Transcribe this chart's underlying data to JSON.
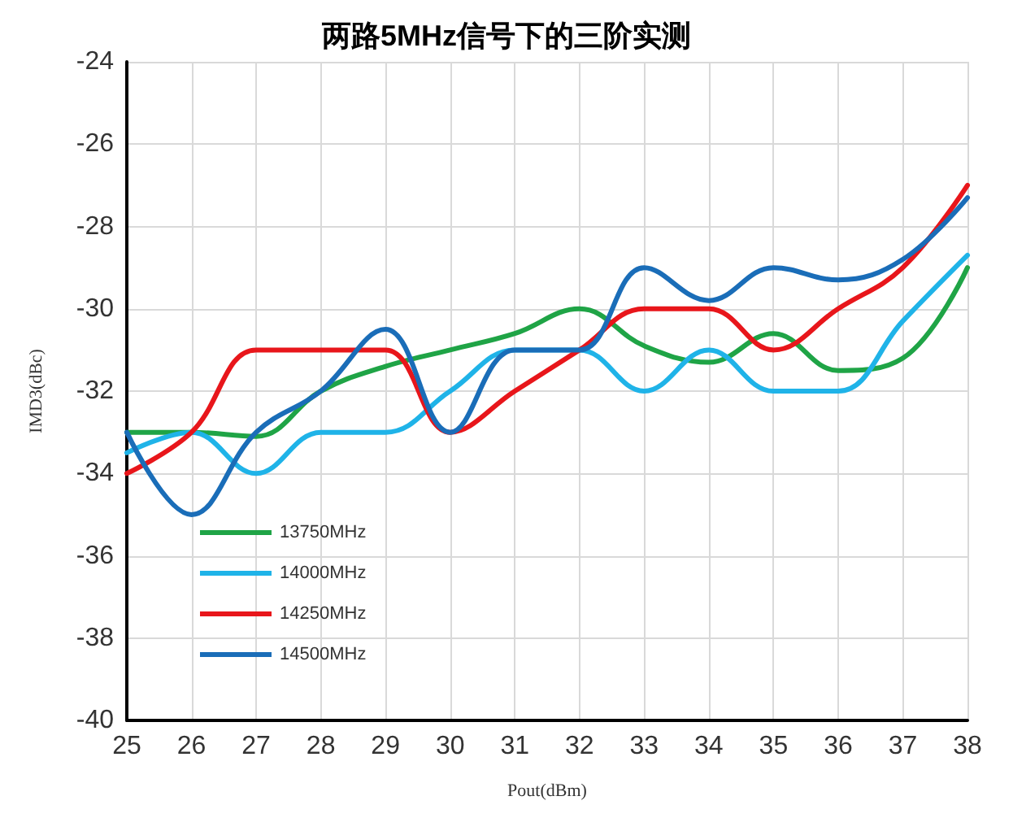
{
  "chart_data": {
    "type": "line",
    "title": "两路5MHz信号下的三阶实测",
    "xlabel": "Pout(dBm)",
    "ylabel": "IMD3(dBc)",
    "x": [
      25,
      26,
      27,
      28,
      29,
      30,
      31,
      32,
      33,
      34,
      35,
      36,
      37,
      38
    ],
    "series": [
      {
        "name": "13750MHz",
        "color": "#1fa446",
        "values": [
          -33,
          -33,
          -33.1,
          -32,
          -31.4,
          -31,
          -30.6,
          -30,
          -30.9,
          -31.3,
          -30.6,
          -31.5,
          -31.2,
          -29
        ]
      },
      {
        "name": "14000MHz",
        "color": "#1fb3e8",
        "values": [
          -33.5,
          -33,
          -34,
          -33,
          -33,
          -32,
          -31,
          -31,
          -32,
          -31,
          -32,
          -32,
          -30.3,
          -28.7
        ]
      },
      {
        "name": "14250MHz",
        "color": "#e8161b",
        "values": [
          -34,
          -33,
          -31,
          -31,
          -31,
          -33,
          -32,
          -31,
          -30,
          -30,
          -31,
          -30,
          -29,
          -27
        ]
      },
      {
        "name": "14500MHz",
        "color": "#1a6db8",
        "values": [
          -33,
          -35,
          -33,
          -32,
          -30.5,
          -33,
          -31,
          -31,
          -29,
          -29.8,
          -29,
          -29.3,
          -28.8,
          -27.3
        ]
      }
    ],
    "xlim": [
      25,
      38
    ],
    "xticks": [
      25,
      26,
      27,
      28,
      29,
      30,
      31,
      32,
      33,
      34,
      35,
      36,
      37,
      38
    ],
    "ylim": [
      -40,
      -24
    ],
    "yticks": [
      -40,
      -38,
      -36,
      -34,
      -32,
      -30,
      -28,
      -26,
      -24
    ],
    "grid": true,
    "legend": "bottom left",
    "marker": "none",
    "line_style": "solid"
  }
}
